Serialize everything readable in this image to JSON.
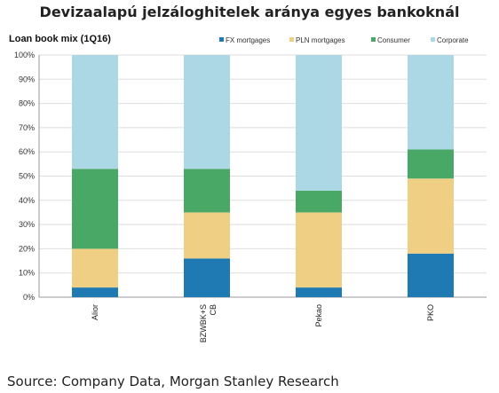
{
  "title": "Devizaalapú jelzáloghitelek aránya egyes bankoknál",
  "source": "Source: Company Data, Morgan Stanley Research",
  "chart_data": {
    "type": "bar",
    "stacked": true,
    "title": "Loan book mix (1Q16)",
    "categories": [
      "Alior",
      "BZWBK+S CB",
      "Pekao",
      "PKO"
    ],
    "series": [
      {
        "name": "FX mortgages",
        "color": "#1f7ab4",
        "values": [
          4,
          16,
          4,
          18
        ]
      },
      {
        "name": "PLN mortgages",
        "color": "#eecf84",
        "values": [
          16,
          19,
          31,
          31
        ]
      },
      {
        "name": "Consumer",
        "color": "#4aa867",
        "values": [
          33,
          18,
          9,
          12
        ]
      },
      {
        "name": "Corporate",
        "color": "#acd8e6",
        "values": [
          47,
          47,
          56,
          39
        ]
      }
    ],
    "ylim": [
      0,
      100
    ],
    "yticks": [
      "0%",
      "10%",
      "20%",
      "30%",
      "40%",
      "50%",
      "60%",
      "70%",
      "80%",
      "90%",
      "100%"
    ],
    "legend_position": "top"
  }
}
